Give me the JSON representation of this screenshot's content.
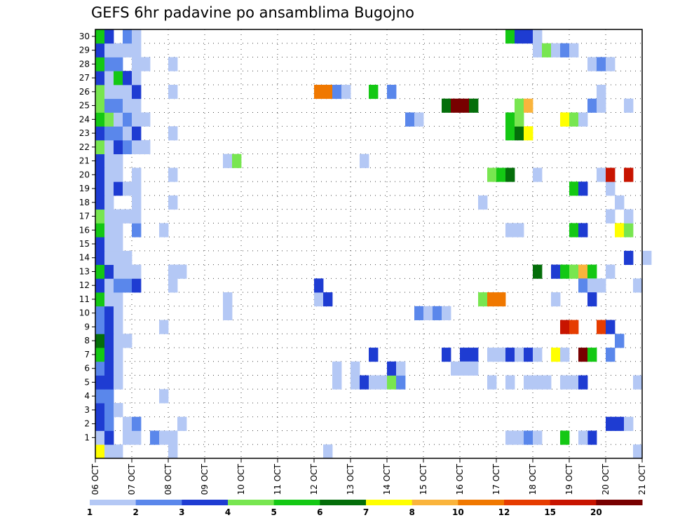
{
  "chart_data": {
    "type": "heatmap",
    "title": "GEFS 6hr padavine po ansamblima Bugojno",
    "xlabel": "",
    "ylabel": "",
    "x_tick_labels": [
      "06 OCT",
      "07 OCT",
      "08 OCT",
      "09 OCT",
      "10 OCT",
      "11 OCT",
      "12 OCT",
      "13 OCT",
      "14 OCT",
      "15 OCT",
      "16 OCT",
      "17 OCT",
      "18 OCT",
      "19 OCT",
      "20 OCT",
      "21 OCT"
    ],
    "x_range_days": [
      0,
      15
    ],
    "y_tick_labels": [
      "1",
      "2",
      "3",
      "4",
      "5",
      "6",
      "7",
      "8",
      "9",
      "10",
      "11",
      "12",
      "13",
      "14",
      "15",
      "16",
      "17",
      "18",
      "19",
      "20",
      "21",
      "22",
      "23",
      "24",
      "25",
      "26",
      "27",
      "28",
      "29",
      "30"
    ],
    "members": 31,
    "steps_per_day": 4,
    "colorbar": {
      "labels": [
        "1",
        "2",
        "3",
        "4",
        "5",
        "6",
        "7",
        "8",
        "10",
        "12",
        "15",
        "20"
      ],
      "colors": [
        "#b4c8f5",
        "#5a87eb",
        "#1e3cd2",
        "#78e650",
        "#14c814",
        "#046e0a",
        "#ffff00",
        "#fab43c",
        "#f07800",
        "#e63c00",
        "#c81400",
        "#780000"
      ]
    },
    "cells": [
      [
        0,
        0,
        6
      ],
      [
        0,
        1,
        0
      ],
      [
        0,
        2,
        0
      ],
      [
        1,
        0,
        0
      ],
      [
        1,
        1,
        2
      ],
      [
        1,
        3,
        0
      ],
      [
        1,
        4,
        0
      ],
      [
        1,
        6,
        1
      ],
      [
        1,
        7,
        0
      ],
      [
        2,
        0,
        2
      ],
      [
        2,
        1,
        1
      ],
      [
        2,
        3,
        0
      ],
      [
        2,
        4,
        1
      ],
      [
        3,
        0,
        2
      ],
      [
        3,
        1,
        1
      ],
      [
        3,
        2,
        0
      ],
      [
        4,
        0,
        1
      ],
      [
        4,
        1,
        1
      ],
      [
        5,
        0,
        2
      ],
      [
        5,
        1,
        2
      ],
      [
        5,
        2,
        0
      ],
      [
        6,
        0,
        1
      ],
      [
        6,
        1,
        2
      ],
      [
        6,
        2,
        0
      ],
      [
        7,
        0,
        4
      ],
      [
        7,
        1,
        2
      ],
      [
        7,
        2,
        0
      ],
      [
        8,
        0,
        5
      ],
      [
        8,
        1,
        2
      ],
      [
        8,
        2,
        0
      ],
      [
        8,
        3,
        0
      ],
      [
        9,
        0,
        1
      ],
      [
        9,
        1,
        2
      ],
      [
        9,
        2,
        0
      ],
      [
        10,
        0,
        1
      ],
      [
        10,
        1,
        2
      ],
      [
        10,
        2,
        0
      ],
      [
        11,
        0,
        4
      ],
      [
        11,
        1,
        0
      ],
      [
        11,
        2,
        0
      ],
      [
        12,
        0,
        2
      ],
      [
        12,
        1,
        0
      ],
      [
        12,
        2,
        1
      ],
      [
        12,
        3,
        1
      ],
      [
        12,
        4,
        2
      ],
      [
        13,
        0,
        4
      ],
      [
        13,
        1,
        2
      ],
      [
        13,
        2,
        0
      ],
      [
        13,
        3,
        0
      ],
      [
        13,
        4,
        0
      ],
      [
        14,
        0,
        2
      ],
      [
        14,
        1,
        0
      ],
      [
        14,
        2,
        0
      ],
      [
        14,
        3,
        0
      ],
      [
        15,
        0,
        2
      ],
      [
        15,
        1,
        0
      ],
      [
        15,
        2,
        0
      ],
      [
        16,
        0,
        4
      ],
      [
        16,
        1,
        0
      ],
      [
        16,
        2,
        0
      ],
      [
        16,
        4,
        1
      ],
      [
        17,
        0,
        3
      ],
      [
        17,
        1,
        0
      ],
      [
        17,
        2,
        0
      ],
      [
        17,
        3,
        0
      ],
      [
        17,
        4,
        0
      ],
      [
        18,
        0,
        2
      ],
      [
        18,
        1,
        0
      ],
      [
        18,
        4,
        0
      ],
      [
        19,
        0,
        2
      ],
      [
        19,
        1,
        0
      ],
      [
        19,
        2,
        2
      ],
      [
        19,
        3,
        0
      ],
      [
        19,
        4,
        0
      ],
      [
        20,
        0,
        2
      ],
      [
        20,
        1,
        0
      ],
      [
        20,
        2,
        0
      ],
      [
        20,
        4,
        0
      ],
      [
        21,
        0,
        2
      ],
      [
        21,
        1,
        0
      ],
      [
        21,
        2,
        0
      ],
      [
        22,
        0,
        3
      ],
      [
        22,
        1,
        0
      ],
      [
        22,
        2,
        2
      ],
      [
        22,
        3,
        1
      ],
      [
        22,
        4,
        0
      ],
      [
        22,
        5,
        0
      ],
      [
        23,
        0,
        2
      ],
      [
        23,
        1,
        1
      ],
      [
        23,
        2,
        1
      ],
      [
        23,
        3,
        0
      ],
      [
        23,
        4,
        2
      ],
      [
        24,
        0,
        4
      ],
      [
        24,
        1,
        3
      ],
      [
        24,
        2,
        0
      ],
      [
        24,
        3,
        1
      ],
      [
        24,
        4,
        0
      ],
      [
        24,
        5,
        0
      ],
      [
        25,
        0,
        3
      ],
      [
        25,
        1,
        1
      ],
      [
        25,
        2,
        1
      ],
      [
        25,
        3,
        0
      ],
      [
        25,
        4,
        0
      ],
      [
        26,
        0,
        3
      ],
      [
        26,
        1,
        0
      ],
      [
        26,
        2,
        0
      ],
      [
        26,
        3,
        0
      ],
      [
        26,
        4,
        2
      ],
      [
        27,
        0,
        2
      ],
      [
        27,
        1,
        0
      ],
      [
        27,
        2,
        4
      ],
      [
        27,
        3,
        2
      ],
      [
        27,
        4,
        0
      ],
      [
        28,
        0,
        4
      ],
      [
        28,
        1,
        1
      ],
      [
        28,
        2,
        1
      ],
      [
        28,
        4,
        0
      ],
      [
        28,
        5,
        0
      ],
      [
        29,
        0,
        2
      ],
      [
        29,
        1,
        0
      ],
      [
        29,
        2,
        0
      ],
      [
        29,
        3,
        0
      ],
      [
        29,
        4,
        0
      ],
      [
        30,
        0,
        4
      ],
      [
        30,
        1,
        2
      ],
      [
        30,
        3,
        1
      ],
      [
        30,
        4,
        0
      ],
      [
        0,
        8,
        0
      ],
      [
        1,
        8,
        0
      ],
      [
        4,
        7,
        0
      ],
      [
        9,
        7,
        0
      ],
      [
        12,
        8,
        0
      ],
      [
        13,
        8,
        0
      ],
      [
        16,
        7,
        0
      ],
      [
        18,
        8,
        0
      ],
      [
        20,
        8,
        0
      ],
      [
        23,
        8,
        0
      ],
      [
        26,
        8,
        0
      ],
      [
        28,
        8,
        0
      ],
      [
        2,
        9,
        0
      ],
      [
        13,
        9,
        0
      ],
      [
        10,
        14,
        0
      ],
      [
        11,
        14,
        0
      ],
      [
        21,
        14,
        0
      ],
      [
        21,
        15,
        3
      ],
      [
        0,
        25,
        0
      ],
      [
        11,
        24,
        0
      ],
      [
        12,
        24,
        2
      ],
      [
        11,
        25,
        2
      ],
      [
        26,
        24,
        8
      ],
      [
        26,
        25,
        8
      ],
      [
        26,
        26,
        1
      ],
      [
        26,
        27,
        0
      ],
      [
        5,
        26,
        0
      ],
      [
        6,
        26,
        0
      ],
      [
        5,
        28,
        0
      ],
      [
        5,
        29,
        2
      ],
      [
        5,
        30,
        0
      ],
      [
        5,
        31,
        0
      ],
      [
        5,
        32,
        3
      ],
      [
        5,
        33,
        1
      ],
      [
        6,
        28,
        0
      ],
      [
        26,
        30,
        4
      ],
      [
        7,
        30,
        2
      ],
      [
        6,
        32,
        2
      ],
      [
        6,
        33,
        0
      ],
      [
        26,
        32,
        1
      ],
      [
        21,
        29,
        0
      ],
      [
        10,
        35,
        1
      ],
      [
        10,
        36,
        0
      ],
      [
        10,
        37,
        1
      ],
      [
        10,
        38,
        0
      ],
      [
        24,
        34,
        1
      ],
      [
        24,
        35,
        0
      ],
      [
        25,
        38,
        5
      ],
      [
        25,
        39,
        11
      ],
      [
        25,
        40,
        11
      ],
      [
        25,
        41,
        5
      ],
      [
        7,
        38,
        2
      ],
      [
        7,
        40,
        2
      ],
      [
        7,
        41,
        2
      ],
      [
        6,
        39,
        0
      ],
      [
        6,
        40,
        0
      ],
      [
        6,
        41,
        0
      ],
      [
        5,
        43,
        0
      ],
      [
        1,
        45,
        0
      ],
      [
        1,
        46,
        0
      ],
      [
        1,
        47,
        1
      ],
      [
        1,
        48,
        0
      ],
      [
        5,
        45,
        0
      ],
      [
        5,
        47,
        0
      ],
      [
        5,
        48,
        0
      ],
      [
        5,
        49,
        0
      ],
      [
        5,
        51,
        0
      ],
      [
        5,
        52,
        0
      ],
      [
        5,
        53,
        2
      ],
      [
        7,
        43,
        0
      ],
      [
        7,
        44,
        0
      ],
      [
        7,
        45,
        2
      ],
      [
        7,
        46,
        0
      ],
      [
        7,
        47,
        2
      ],
      [
        7,
        48,
        0
      ],
      [
        11,
        42,
        3
      ],
      [
        11,
        43,
        8
      ],
      [
        11,
        44,
        8
      ],
      [
        16,
        45,
        0
      ],
      [
        16,
        46,
        0
      ],
      [
        18,
        42,
        0
      ],
      [
        20,
        43,
        3
      ],
      [
        20,
        44,
        4
      ],
      [
        20,
        45,
        5
      ],
      [
        20,
        48,
        0
      ],
      [
        23,
        45,
        4
      ],
      [
        23,
        46,
        5
      ],
      [
        23,
        47,
        6
      ],
      [
        24,
        45,
        4
      ],
      [
        24,
        46,
        3
      ],
      [
        25,
        46,
        3
      ],
      [
        25,
        47,
        7
      ],
      [
        29,
        48,
        0
      ],
      [
        29,
        49,
        3
      ],
      [
        29,
        50,
        0
      ],
      [
        30,
        45,
        4
      ],
      [
        30,
        46,
        2
      ],
      [
        30,
        47,
        2
      ],
      [
        30,
        48,
        0
      ],
      [
        24,
        51,
        6
      ],
      [
        24,
        52,
        3
      ],
      [
        13,
        48,
        5
      ],
      [
        13,
        50,
        2
      ],
      [
        13,
        51,
        4
      ],
      [
        13,
        52,
        3
      ],
      [
        13,
        53,
        7
      ],
      [
        13,
        54,
        4
      ],
      [
        13,
        56,
        0
      ],
      [
        12,
        53,
        1
      ],
      [
        12,
        54,
        0
      ],
      [
        14,
        58,
        2
      ],
      [
        14,
        60,
        0
      ],
      [
        16,
        52,
        4
      ],
      [
        16,
        53,
        2
      ],
      [
        16,
        57,
        6
      ],
      [
        16,
        58,
        3
      ],
      [
        17,
        56,
        0
      ],
      [
        17,
        58,
        0
      ],
      [
        19,
        52,
        4
      ],
      [
        19,
        53,
        2
      ],
      [
        19,
        56,
        0
      ],
      [
        20,
        55,
        0
      ],
      [
        20,
        56,
        10
      ],
      [
        20,
        58,
        10
      ],
      [
        9,
        51,
        10
      ],
      [
        9,
        52,
        9
      ],
      [
        9,
        55,
        9
      ],
      [
        9,
        56,
        2
      ],
      [
        8,
        57,
        1
      ],
      [
        7,
        50,
        6
      ],
      [
        7,
        51,
        0
      ],
      [
        7,
        53,
        11
      ],
      [
        7,
        54,
        4
      ],
      [
        7,
        56,
        1
      ],
      [
        1,
        51,
        4
      ],
      [
        1,
        54,
        2
      ],
      [
        2,
        56,
        2
      ],
      [
        2,
        57,
        2
      ],
      [
        2,
        58,
        0
      ],
      [
        24,
        53,
        0
      ],
      [
        25,
        54,
        1
      ],
      [
        25,
        55,
        0
      ],
      [
        25,
        58,
        0
      ],
      [
        26,
        55,
        0
      ],
      [
        28,
        54,
        0
      ],
      [
        28,
        55,
        1
      ],
      [
        28,
        56,
        0
      ],
      [
        29,
        51,
        1
      ],
      [
        29,
        52,
        0
      ],
      [
        11,
        50,
        0
      ],
      [
        11,
        54,
        2
      ],
      [
        12,
        55,
        0
      ],
      [
        12,
        59,
        0
      ],
      [
        18,
        57,
        0
      ],
      [
        1,
        53,
        0
      ],
      [
        0,
        59,
        0
      ],
      [
        5,
        59,
        0
      ]
    ]
  }
}
